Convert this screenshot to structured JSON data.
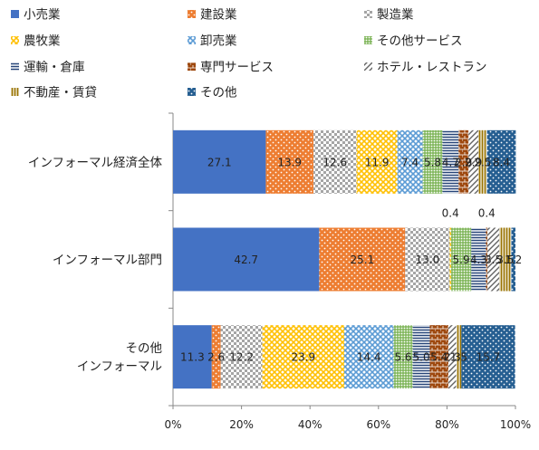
{
  "chart_data": {
    "type": "bar",
    "orientation": "horizontal",
    "stacked": true,
    "percent": true,
    "categories": [
      "インフォーマル経済全体",
      "インフォーマル部門",
      "その他インフォーマル"
    ],
    "category_lines": [
      [
        "インフォーマル経済全体"
      ],
      [
        "インフォーマル部門"
      ],
      [
        "その他",
        "インフォーマル"
      ]
    ],
    "series": [
      {
        "name": "小売業",
        "color": "#4472c4",
        "pattern": "solid",
        "values": [
          27.1,
          42.7,
          11.3
        ]
      },
      {
        "name": "建設業",
        "color": "#ed7d31",
        "pattern": "dots",
        "values": [
          13.9,
          25.1,
          2.6
        ]
      },
      {
        "name": "製造業",
        "color": "#a5a5a5",
        "pattern": "check",
        "values": [
          12.6,
          13.0,
          12.2
        ]
      },
      {
        "name": "農牧業",
        "color": "#ffc000",
        "pattern": "diamond",
        "values": [
          11.9,
          0.4,
          23.9
        ]
      },
      {
        "name": "卸売業",
        "color": "#5b9bd5",
        "pattern": "diamond",
        "values": [
          7.4,
          0.0,
          14.4
        ]
      },
      {
        "name": "その他サービス",
        "color": "#70ad47",
        "pattern": "grid",
        "values": [
          5.8,
          5.9,
          5.6
        ]
      },
      {
        "name": "運輸・倉庫",
        "color": "#264478",
        "pattern": "hlines",
        "values": [
          4.7,
          4.3,
          5.0
        ]
      },
      {
        "name": "専門サービス",
        "color": "#9e480e",
        "pattern": "brick",
        "values": [
          2.9,
          0.4,
          5.4
        ]
      },
      {
        "name": "ホテル・レストラン",
        "color": "#636363",
        "pattern": "diag",
        "values": [
          2.9,
          3.5,
          2.3
        ]
      },
      {
        "name": "不動産・賃貸",
        "color": "#997300",
        "pattern": "vlines",
        "values": [
          2.5,
          3.5,
          1.5
        ]
      },
      {
        "name": "その他",
        "color": "#255e91",
        "pattern": "dots",
        "values": [
          8.4,
          1.2,
          15.7
        ]
      }
    ],
    "xlim": [
      0,
      100
    ],
    "xticks": [
      "0%",
      "20%",
      "40%",
      "60%",
      "80%",
      "100%"
    ],
    "labels": [
      [
        "27.1",
        "13.9",
        "12.6",
        "11.9",
        "7.4",
        "5.8",
        "4.7",
        "2.9",
        "2.9",
        "2.5",
        "8.4"
      ],
      [
        "42.7",
        "25.1",
        "13.0",
        "0.4",
        "",
        "5.9",
        "4.3",
        "0.4",
        "3.5",
        "3.5",
        "1.2"
      ],
      [
        "11.3",
        "2.6",
        "12.2",
        "23.9",
        "14.4",
        "5.6",
        "5.0",
        "5.4",
        "2.3",
        "1.5",
        "15.7"
      ]
    ],
    "legend_position": "top",
    "grid": false
  }
}
